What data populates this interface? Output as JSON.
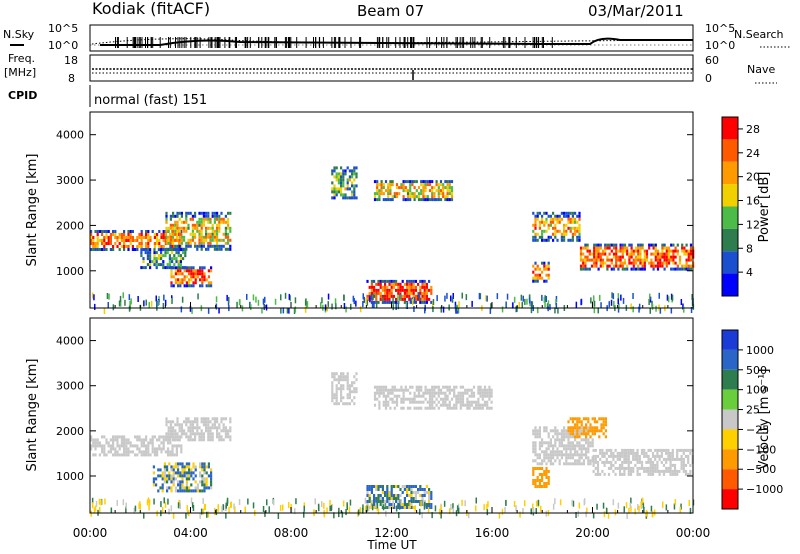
{
  "header": {
    "station": "Kodiak (fitACF)",
    "beam": "Beam 07",
    "date": "03/Mar/2011"
  },
  "side_labels": {
    "nsky": "N.Sky",
    "nsearch": "N.Search",
    "freq_line1": "Freq.",
    "freq_line2": "[MHz]",
    "nave": "Nave",
    "cpid": "CPID"
  },
  "small_panels": {
    "noise_ticks_left": [
      "10^5",
      "10^0"
    ],
    "noise_ticks_right": [
      "10^5",
      "10^0"
    ],
    "freq_ticks": [
      "18",
      "8"
    ],
    "nave_ticks": [
      "60",
      "0"
    ],
    "cpid_text": "normal (fast) 151"
  },
  "colors": {
    "power_scale": [
      "#0000ff",
      "#1a4fd0",
      "#2e7d4f",
      "#4cbb47",
      "#f0d000",
      "#ff9a00",
      "#ff5a00",
      "#ff0000"
    ],
    "velocity_scale": [
      "#1a3bd6",
      "#2a66c8",
      "#2e7d4f",
      "#6acd3c",
      "#c8c8c8",
      "#ffd000",
      "#ff9a00",
      "#ff5a00",
      "#ff0000"
    ],
    "ground_scatter": "#bfbfbf"
  },
  "chart_data": [
    {
      "type": "heatmap",
      "title": "",
      "xlabel": "",
      "ylabel": "Slant Range [km]",
      "xlim": [
        "00:00",
        "00:00"
      ],
      "ylim": [
        180,
        4500
      ],
      "yticks": [
        "1000",
        "2000",
        "3000",
        "4000"
      ],
      "colorbar": {
        "label": "Power [dB]",
        "ticks": [
          "4",
          "8",
          "12",
          "16",
          "20",
          "24",
          "28"
        ],
        "range": [
          0,
          30
        ]
      },
      "regions": [
        {
          "t0": 0.0,
          "t1": 3.6,
          "r0": 1450,
          "r1": 1900,
          "value": 22
        },
        {
          "t0": 3.0,
          "t1": 5.6,
          "r0": 1500,
          "r1": 2300,
          "value": 18
        },
        {
          "t0": 3.2,
          "t1": 4.8,
          "r0": 700,
          "r1": 1100,
          "value": 24
        },
        {
          "t0": 2.0,
          "t1": 3.8,
          "r0": 1100,
          "r1": 1500,
          "value": 10
        },
        {
          "t0": 9.6,
          "t1": 10.6,
          "r0": 2600,
          "r1": 3300,
          "value": 12
        },
        {
          "t0": 11.3,
          "t1": 14.4,
          "r0": 2550,
          "r1": 3000,
          "value": 18
        },
        {
          "t0": 11.0,
          "t1": 13.6,
          "r0": 300,
          "r1": 800,
          "value": 26
        },
        {
          "t0": 17.6,
          "t1": 19.5,
          "r0": 1700,
          "r1": 2300,
          "value": 20
        },
        {
          "t0": 19.5,
          "t1": 24.0,
          "r0": 1050,
          "r1": 1600,
          "value": 24
        },
        {
          "t0": 17.6,
          "t1": 18.3,
          "r0": 800,
          "r1": 1200,
          "value": 22
        }
      ]
    },
    {
      "type": "heatmap",
      "title": "",
      "xlabel": "Time UT",
      "ylabel": "Slant Range [km]",
      "xlim": [
        "00:00",
        "00:00"
      ],
      "xticks": [
        "00:00",
        "04:00",
        "08:00",
        "12:00",
        "16:00",
        "20:00",
        "00:00"
      ],
      "ylim": [
        180,
        4500
      ],
      "yticks": [
        "1000",
        "2000",
        "3000",
        "4000"
      ],
      "colorbar": {
        "label": "Velocity [m s⁻¹]",
        "ticks": [
          "1000",
          "500",
          "100",
          "25",
          "−25",
          "−100",
          "−500",
          "−1000"
        ],
        "range": [
          -1000,
          1000
        ]
      },
      "regions": [
        {
          "t0": 0.0,
          "t1": 3.6,
          "r0": 1450,
          "r1": 1900,
          "value": 0
        },
        {
          "t0": 3.0,
          "t1": 5.6,
          "r0": 1800,
          "r1": 2300,
          "value": 0
        },
        {
          "t0": 2.5,
          "t1": 4.8,
          "r0": 700,
          "r1": 1300,
          "value": 60
        },
        {
          "t0": 9.6,
          "t1": 10.6,
          "r0": 2600,
          "r1": 3300,
          "value": 0
        },
        {
          "t0": 11.3,
          "t1": 16.0,
          "r0": 2500,
          "r1": 3000,
          "value": 0
        },
        {
          "t0": 11.0,
          "t1": 13.6,
          "r0": 300,
          "r1": 800,
          "value": 60
        },
        {
          "t0": 17.6,
          "t1": 20.0,
          "r0": 1300,
          "r1": 2100,
          "value": 0
        },
        {
          "t0": 19.0,
          "t1": 20.5,
          "r0": 1900,
          "r1": 2300,
          "value": -300
        },
        {
          "t0": 20.0,
          "t1": 24.0,
          "r0": 1050,
          "r1": 1600,
          "value": 0
        },
        {
          "t0": 17.6,
          "t1": 18.3,
          "r0": 800,
          "r1": 1200,
          "value": -300
        }
      ]
    }
  ]
}
